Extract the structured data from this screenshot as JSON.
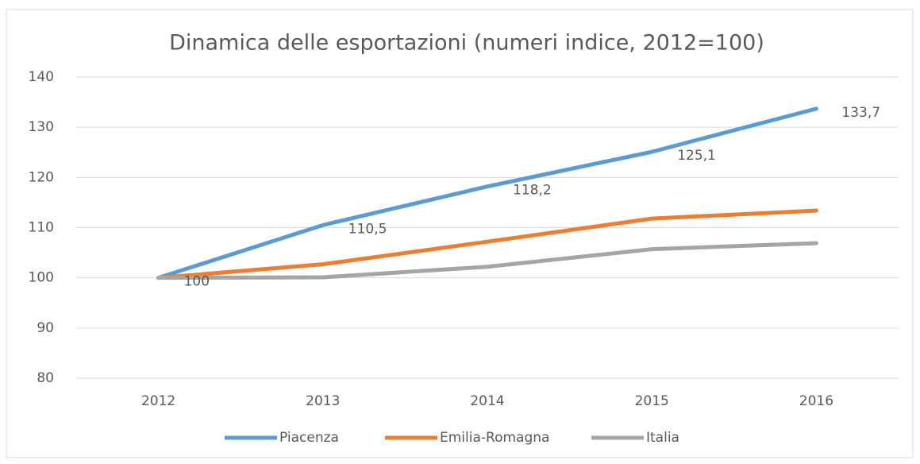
{
  "chart_data": {
    "type": "line",
    "title": "Dinamica delle esportazioni (numeri indice, 2012=100)",
    "categories": [
      "2012",
      "2013",
      "2014",
      "2015",
      "2016"
    ],
    "series": [
      {
        "name": "Piacenza",
        "color": "#5b9bd5",
        "values": [
          100,
          110.5,
          118.2,
          125.1,
          133.7
        ],
        "value_labels": [
          "100",
          "110,5",
          "118,2",
          "125,1",
          "133,7"
        ]
      },
      {
        "name": "Emilia-Romagna",
        "color": "#ed7d31",
        "values": [
          100,
          102.7,
          107.2,
          111.8,
          113.4
        ]
      },
      {
        "name": "Italia",
        "color": "#a5a5a5",
        "values": [
          100,
          100.1,
          102.2,
          105.7,
          106.9
        ]
      }
    ],
    "ylim": [
      80,
      140
    ],
    "yticks": [
      80,
      90,
      100,
      110,
      120,
      130,
      140
    ],
    "grid": true,
    "legend": "bottom"
  }
}
